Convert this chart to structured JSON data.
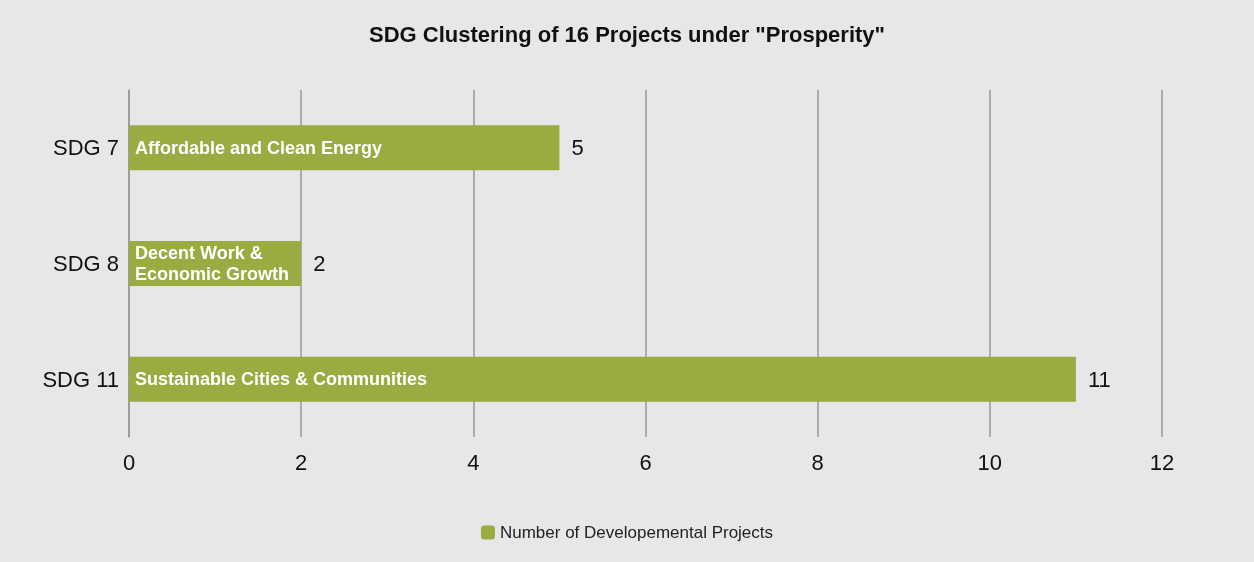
{
  "chart_data": {
    "type": "bar",
    "orientation": "horizontal",
    "title": "SDG Clustering of 16 Projects under \"Prosperity\"",
    "categories": [
      "SDG 7",
      "SDG 8",
      "SDG 11"
    ],
    "series": [
      {
        "name": "Number of Developemental Projects",
        "color": "#9aab41",
        "values": [
          5,
          2,
          11
        ]
      }
    ],
    "xlim": [
      0,
      12
    ],
    "xticks": [
      0,
      2,
      4,
      6,
      8,
      10,
      12
    ],
    "grid": "x",
    "legend": "bottom",
    "data_labels": true,
    "annotations": [
      "Affordable and Clean Energy",
      "Decent Work & Economic Growth",
      "Sustainable Cities & Communities"
    ]
  }
}
